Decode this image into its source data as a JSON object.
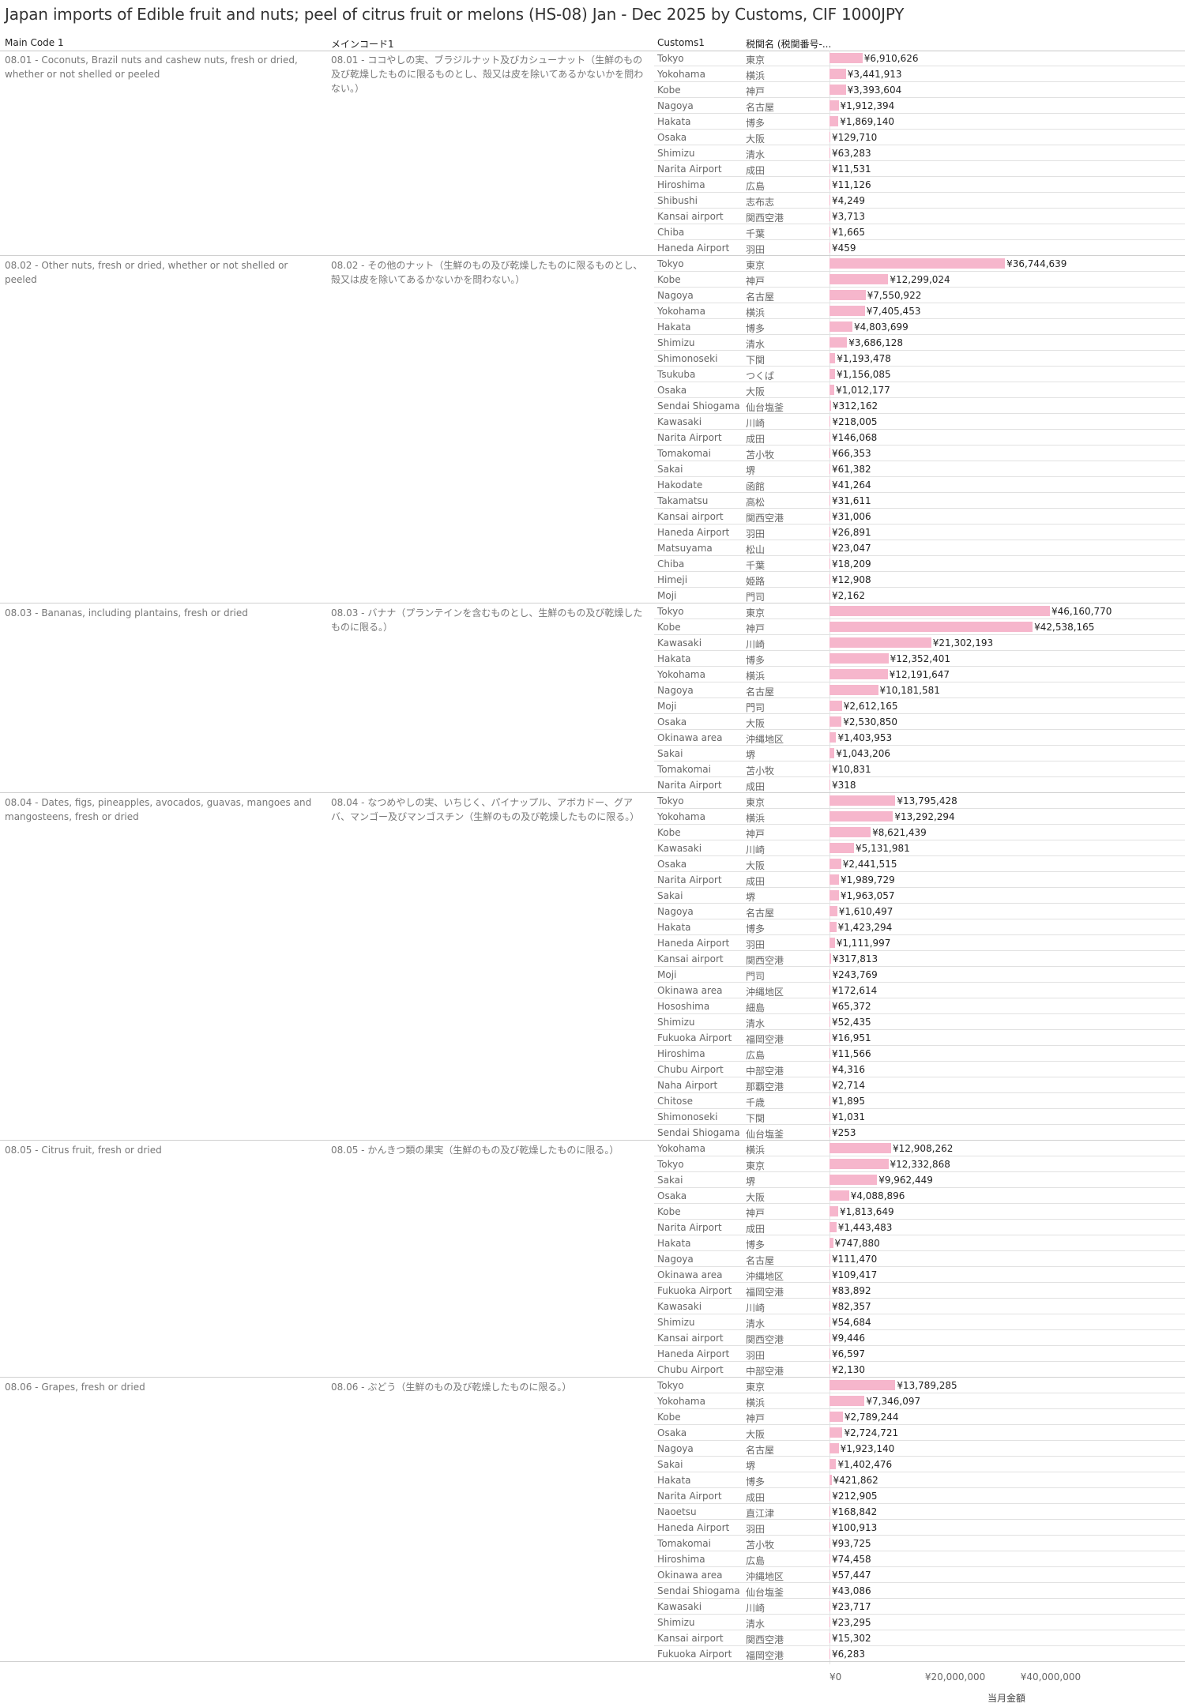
{
  "title": "Japan imports of Edible fruit and nuts; peel of citrus fruit or melons (HS-08) Jan - Dec 2025 by Customs, CIF 1000JPY",
  "headers": {
    "main_code": "Main Code 1",
    "main_code_jp": "メインコード1",
    "customs": "Customs1",
    "customs_jp": "税関名 (税関番号-..."
  },
  "axis": {
    "title": "当月金額",
    "ticks": [
      "¥0",
      "¥20,000,000",
      "¥40,000,000"
    ],
    "tick_values": [
      0,
      20000000,
      40000000
    ]
  },
  "chart_data": {
    "type": "bar",
    "orientation": "horizontal",
    "xlim": [
      0,
      48000000
    ],
    "groups": [
      {
        "code": "08.01 - Coconuts, Brazil nuts and cashew nuts, fresh or dried, whether or not shelled or peeled",
        "code_jp": "08.01 - ココやしの実、ブラジルナット及びカシューナット（生鮮のもの及び乾燥したものに限るものとし、殻又は皮を除いてあるかないかを問わない。）",
        "rows": [
          {
            "customs": "Tokyo",
            "customs_jp": "東京",
            "value": 6910626,
            "label": "¥6,910,626"
          },
          {
            "customs": "Yokohama",
            "customs_jp": "横浜",
            "value": 3441913,
            "label": "¥3,441,913"
          },
          {
            "customs": "Kobe",
            "customs_jp": "神戸",
            "value": 3393604,
            "label": "¥3,393,604"
          },
          {
            "customs": "Nagoya",
            "customs_jp": "名古屋",
            "value": 1912394,
            "label": "¥1,912,394"
          },
          {
            "customs": "Hakata",
            "customs_jp": "博多",
            "value": 1869140,
            "label": "¥1,869,140"
          },
          {
            "customs": "Osaka",
            "customs_jp": "大阪",
            "value": 129710,
            "label": "¥129,710"
          },
          {
            "customs": "Shimizu",
            "customs_jp": "清水",
            "value": 63283,
            "label": "¥63,283"
          },
          {
            "customs": "Narita Airport",
            "customs_jp": "成田",
            "value": 11531,
            "label": "¥11,531"
          },
          {
            "customs": "Hiroshima",
            "customs_jp": "広島",
            "value": 11126,
            "label": "¥11,126"
          },
          {
            "customs": "Shibushi",
            "customs_jp": "志布志",
            "value": 4249,
            "label": "¥4,249"
          },
          {
            "customs": "Kansai airport",
            "customs_jp": "関西空港",
            "value": 3713,
            "label": "¥3,713"
          },
          {
            "customs": "Chiba",
            "customs_jp": "千葉",
            "value": 1665,
            "label": "¥1,665"
          },
          {
            "customs": "Haneda Airport",
            "customs_jp": "羽田",
            "value": 459,
            "label": "¥459"
          }
        ]
      },
      {
        "code": "08.02 - Other nuts, fresh or dried, whether or not shelled or peeled",
        "code_jp": "08.02 - その他のナット（生鮮のもの及び乾燥したものに限るものとし、殻又は皮を除いてあるかないかを問わない。）",
        "rows": [
          {
            "customs": "Tokyo",
            "customs_jp": "東京",
            "value": 36744639,
            "label": "¥36,744,639"
          },
          {
            "customs": "Kobe",
            "customs_jp": "神戸",
            "value": 12299024,
            "label": "¥12,299,024"
          },
          {
            "customs": "Nagoya",
            "customs_jp": "名古屋",
            "value": 7550922,
            "label": "¥7,550,922"
          },
          {
            "customs": "Yokohama",
            "customs_jp": "横浜",
            "value": 7405453,
            "label": "¥7,405,453"
          },
          {
            "customs": "Hakata",
            "customs_jp": "博多",
            "value": 4803699,
            "label": "¥4,803,699"
          },
          {
            "customs": "Shimizu",
            "customs_jp": "清水",
            "value": 3686128,
            "label": "¥3,686,128"
          },
          {
            "customs": "Shimonoseki",
            "customs_jp": "下関",
            "value": 1193478,
            "label": "¥1,193,478"
          },
          {
            "customs": "Tsukuba",
            "customs_jp": "つくば",
            "value": 1156085,
            "label": "¥1,156,085"
          },
          {
            "customs": "Osaka",
            "customs_jp": "大阪",
            "value": 1012177,
            "label": "¥1,012,177"
          },
          {
            "customs": "Sendai Shiogama",
            "customs_jp": "仙台塩釜",
            "value": 312162,
            "label": "¥312,162"
          },
          {
            "customs": "Kawasaki",
            "customs_jp": "川崎",
            "value": 218005,
            "label": "¥218,005"
          },
          {
            "customs": "Narita Airport",
            "customs_jp": "成田",
            "value": 146068,
            "label": "¥146,068"
          },
          {
            "customs": "Tomakomai",
            "customs_jp": "苫小牧",
            "value": 66353,
            "label": "¥66,353"
          },
          {
            "customs": "Sakai",
            "customs_jp": "堺",
            "value": 61382,
            "label": "¥61,382"
          },
          {
            "customs": "Hakodate",
            "customs_jp": "函館",
            "value": 41264,
            "label": "¥41,264"
          },
          {
            "customs": "Takamatsu",
            "customs_jp": "高松",
            "value": 31611,
            "label": "¥31,611"
          },
          {
            "customs": "Kansai airport",
            "customs_jp": "関西空港",
            "value": 31006,
            "label": "¥31,006"
          },
          {
            "customs": "Haneda Airport",
            "customs_jp": "羽田",
            "value": 26891,
            "label": "¥26,891"
          },
          {
            "customs": "Matsuyama",
            "customs_jp": "松山",
            "value": 23047,
            "label": "¥23,047"
          },
          {
            "customs": "Chiba",
            "customs_jp": "千葉",
            "value": 18209,
            "label": "¥18,209"
          },
          {
            "customs": "Himeji",
            "customs_jp": "姫路",
            "value": 12908,
            "label": "¥12,908"
          },
          {
            "customs": "Moji",
            "customs_jp": "門司",
            "value": 2162,
            "label": "¥2,162"
          }
        ]
      },
      {
        "code": "08.03 - Bananas, including plantains, fresh or dried",
        "code_jp": "08.03 - バナナ（プランテインを含むものとし、生鮮のもの及び乾燥したものに限る。）",
        "rows": [
          {
            "customs": "Tokyo",
            "customs_jp": "東京",
            "value": 46160770,
            "label": "¥46,160,770"
          },
          {
            "customs": "Kobe",
            "customs_jp": "神戸",
            "value": 42538165,
            "label": "¥42,538,165"
          },
          {
            "customs": "Kawasaki",
            "customs_jp": "川崎",
            "value": 21302193,
            "label": "¥21,302,193"
          },
          {
            "customs": "Hakata",
            "customs_jp": "博多",
            "value": 12352401,
            "label": "¥12,352,401"
          },
          {
            "customs": "Yokohama",
            "customs_jp": "横浜",
            "value": 12191647,
            "label": "¥12,191,647"
          },
          {
            "customs": "Nagoya",
            "customs_jp": "名古屋",
            "value": 10181581,
            "label": "¥10,181,581"
          },
          {
            "customs": "Moji",
            "customs_jp": "門司",
            "value": 2612165,
            "label": "¥2,612,165"
          },
          {
            "customs": "Osaka",
            "customs_jp": "大阪",
            "value": 2530850,
            "label": "¥2,530,850"
          },
          {
            "customs": "Okinawa area",
            "customs_jp": "沖縄地区",
            "value": 1403953,
            "label": "¥1,403,953"
          },
          {
            "customs": "Sakai",
            "customs_jp": "堺",
            "value": 1043206,
            "label": "¥1,043,206"
          },
          {
            "customs": "Tomakomai",
            "customs_jp": "苫小牧",
            "value": 10831,
            "label": "¥10,831"
          },
          {
            "customs": "Narita Airport",
            "customs_jp": "成田",
            "value": 318,
            "label": "¥318"
          }
        ]
      },
      {
        "code": "08.04 - Dates, figs, pineapples, avocados, guavas, mangoes and mangosteens, fresh or dried",
        "code_jp": "08.04 - なつめやしの実、いちじく、パイナップル、アボカドー、グアバ、マンゴー及びマンゴスチン（生鮮のもの及び乾燥したものに限る。）",
        "rows": [
          {
            "customs": "Tokyo",
            "customs_jp": "東京",
            "value": 13795428,
            "label": "¥13,795,428"
          },
          {
            "customs": "Yokohama",
            "customs_jp": "横浜",
            "value": 13292294,
            "label": "¥13,292,294"
          },
          {
            "customs": "Kobe",
            "customs_jp": "神戸",
            "value": 8621439,
            "label": "¥8,621,439"
          },
          {
            "customs": "Kawasaki",
            "customs_jp": "川崎",
            "value": 5131981,
            "label": "¥5,131,981"
          },
          {
            "customs": "Osaka",
            "customs_jp": "大阪",
            "value": 2441515,
            "label": "¥2,441,515"
          },
          {
            "customs": "Narita Airport",
            "customs_jp": "成田",
            "value": 1989729,
            "label": "¥1,989,729"
          },
          {
            "customs": "Sakai",
            "customs_jp": "堺",
            "value": 1963057,
            "label": "¥1,963,057"
          },
          {
            "customs": "Nagoya",
            "customs_jp": "名古屋",
            "value": 1610497,
            "label": "¥1,610,497"
          },
          {
            "customs": "Hakata",
            "customs_jp": "博多",
            "value": 1423294,
            "label": "¥1,423,294"
          },
          {
            "customs": "Haneda Airport",
            "customs_jp": "羽田",
            "value": 1111997,
            "label": "¥1,111,997"
          },
          {
            "customs": "Kansai airport",
            "customs_jp": "関西空港",
            "value": 317813,
            "label": "¥317,813"
          },
          {
            "customs": "Moji",
            "customs_jp": "門司",
            "value": 243769,
            "label": "¥243,769"
          },
          {
            "customs": "Okinawa area",
            "customs_jp": "沖縄地区",
            "value": 172614,
            "label": "¥172,614"
          },
          {
            "customs": "Hososhima",
            "customs_jp": "細島",
            "value": 65372,
            "label": "¥65,372"
          },
          {
            "customs": "Shimizu",
            "customs_jp": "清水",
            "value": 52435,
            "label": "¥52,435"
          },
          {
            "customs": "Fukuoka Airport",
            "customs_jp": "福岡空港",
            "value": 16951,
            "label": "¥16,951"
          },
          {
            "customs": "Hiroshima",
            "customs_jp": "広島",
            "value": 11566,
            "label": "¥11,566"
          },
          {
            "customs": "Chubu Airport",
            "customs_jp": "中部空港",
            "value": 4316,
            "label": "¥4,316"
          },
          {
            "customs": "Naha Airport",
            "customs_jp": "那覇空港",
            "value": 2714,
            "label": "¥2,714"
          },
          {
            "customs": "Chitose",
            "customs_jp": "千歳",
            "value": 1895,
            "label": "¥1,895"
          },
          {
            "customs": "Shimonoseki",
            "customs_jp": "下関",
            "value": 1031,
            "label": "¥1,031"
          },
          {
            "customs": "Sendai Shiogama",
            "customs_jp": "仙台塩釜",
            "value": 253,
            "label": "¥253"
          }
        ]
      },
      {
        "code": "08.05 - Citrus fruit, fresh or dried",
        "code_jp": "08.05 - かんきつ類の果実（生鮮のもの及び乾燥したものに限る。）",
        "rows": [
          {
            "customs": "Yokohama",
            "customs_jp": "横浜",
            "value": 12908262,
            "label": "¥12,908,262"
          },
          {
            "customs": "Tokyo",
            "customs_jp": "東京",
            "value": 12332868,
            "label": "¥12,332,868"
          },
          {
            "customs": "Sakai",
            "customs_jp": "堺",
            "value": 9962449,
            "label": "¥9,962,449"
          },
          {
            "customs": "Osaka",
            "customs_jp": "大阪",
            "value": 4088896,
            "label": "¥4,088,896"
          },
          {
            "customs": "Kobe",
            "customs_jp": "神戸",
            "value": 1813649,
            "label": "¥1,813,649"
          },
          {
            "customs": "Narita Airport",
            "customs_jp": "成田",
            "value": 1443483,
            "label": "¥1,443,483"
          },
          {
            "customs": "Hakata",
            "customs_jp": "博多",
            "value": 747880,
            "label": "¥747,880"
          },
          {
            "customs": "Nagoya",
            "customs_jp": "名古屋",
            "value": 111470,
            "label": "¥111,470"
          },
          {
            "customs": "Okinawa area",
            "customs_jp": "沖縄地区",
            "value": 109417,
            "label": "¥109,417"
          },
          {
            "customs": "Fukuoka Airport",
            "customs_jp": "福岡空港",
            "value": 83892,
            "label": "¥83,892"
          },
          {
            "customs": "Kawasaki",
            "customs_jp": "川崎",
            "value": 82357,
            "label": "¥82,357"
          },
          {
            "customs": "Shimizu",
            "customs_jp": "清水",
            "value": 54684,
            "label": "¥54,684"
          },
          {
            "customs": "Kansai airport",
            "customs_jp": "関西空港",
            "value": 9446,
            "label": "¥9,446"
          },
          {
            "customs": "Haneda Airport",
            "customs_jp": "羽田",
            "value": 6597,
            "label": "¥6,597"
          },
          {
            "customs": "Chubu Airport",
            "customs_jp": "中部空港",
            "value": 2130,
            "label": "¥2,130"
          }
        ]
      },
      {
        "code": "08.06 - Grapes, fresh or dried",
        "code_jp": "08.06 - ぶどう（生鮮のもの及び乾燥したものに限る。）",
        "rows": [
          {
            "customs": "Tokyo",
            "customs_jp": "東京",
            "value": 13789285,
            "label": "¥13,789,285"
          },
          {
            "customs": "Yokohama",
            "customs_jp": "横浜",
            "value": 7346097,
            "label": "¥7,346,097"
          },
          {
            "customs": "Kobe",
            "customs_jp": "神戸",
            "value": 2789244,
            "label": "¥2,789,244"
          },
          {
            "customs": "Osaka",
            "customs_jp": "大阪",
            "value": 2724721,
            "label": "¥2,724,721"
          },
          {
            "customs": "Nagoya",
            "customs_jp": "名古屋",
            "value": 1923140,
            "label": "¥1,923,140"
          },
          {
            "customs": "Sakai",
            "customs_jp": "堺",
            "value": 1402476,
            "label": "¥1,402,476"
          },
          {
            "customs": "Hakata",
            "customs_jp": "博多",
            "value": 421862,
            "label": "¥421,862"
          },
          {
            "customs": "Narita Airport",
            "customs_jp": "成田",
            "value": 212905,
            "label": "¥212,905"
          },
          {
            "customs": "Naoetsu",
            "customs_jp": "直江津",
            "value": 168842,
            "label": "¥168,842"
          },
          {
            "customs": "Haneda Airport",
            "customs_jp": "羽田",
            "value": 100913,
            "label": "¥100,913"
          },
          {
            "customs": "Tomakomai",
            "customs_jp": "苫小牧",
            "value": 93725,
            "label": "¥93,725"
          },
          {
            "customs": "Hiroshima",
            "customs_jp": "広島",
            "value": 74458,
            "label": "¥74,458"
          },
          {
            "customs": "Okinawa area",
            "customs_jp": "沖縄地区",
            "value": 57447,
            "label": "¥57,447"
          },
          {
            "customs": "Sendai Shiogama",
            "customs_jp": "仙台塩釜",
            "value": 43086,
            "label": "¥43,086"
          },
          {
            "customs": "Kawasaki",
            "customs_jp": "川崎",
            "value": 23717,
            "label": "¥23,717"
          },
          {
            "customs": "Shimizu",
            "customs_jp": "清水",
            "value": 23295,
            "label": "¥23,295"
          },
          {
            "customs": "Kansai airport",
            "customs_jp": "関西空港",
            "value": 15302,
            "label": "¥15,302"
          },
          {
            "customs": "Fukuoka Airport",
            "customs_jp": "福岡空港",
            "value": 6283,
            "label": "¥6,283"
          }
        ]
      }
    ]
  },
  "colors": {
    "bar": "#f6b6cc"
  }
}
